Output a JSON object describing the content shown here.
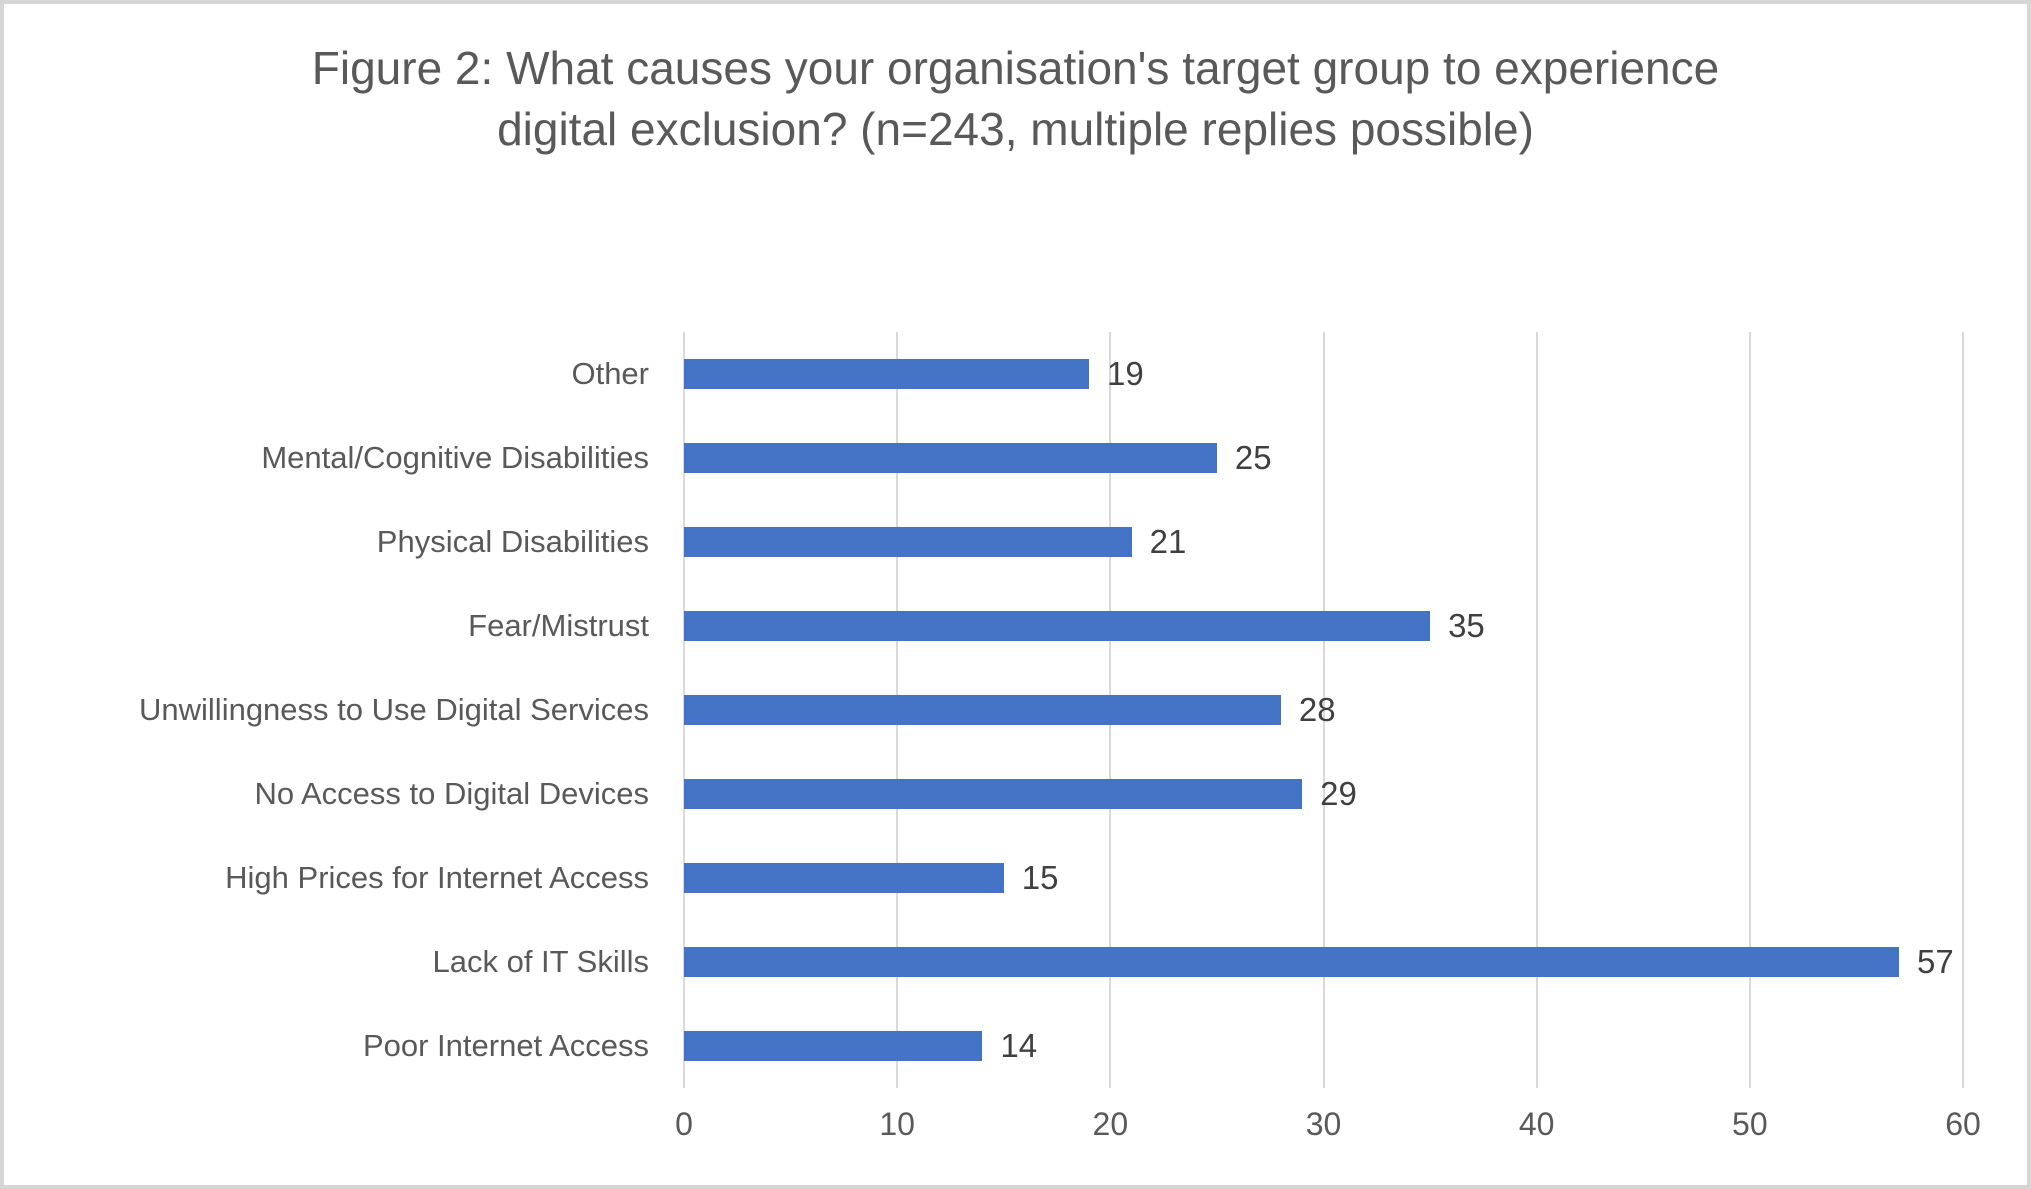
{
  "frame": {
    "background_color": "#ffffff",
    "border_color": "#d6d6d6"
  },
  "chart_data": {
    "type": "bar",
    "orientation": "horizontal",
    "title": "Figure 2: What causes your organisation's target group to experience digital exclusion? (n=243, multiple replies possible)",
    "categories": [
      "Other",
      "Mental/Cognitive Disabilities",
      "Physical Disabilities",
      "Fear/Mistrust",
      "Unwillingness to Use Digital Services",
      "No Access to Digital Devices",
      "High Prices for Internet Access",
      "Lack of IT Skills",
      "Poor Internet Access"
    ],
    "values": [
      19,
      25,
      21,
      35,
      28,
      29,
      15,
      57,
      14
    ],
    "xlabel": "",
    "ylabel": "",
    "xlim": [
      0,
      60
    ],
    "xticks": [
      0,
      10,
      20,
      30,
      40,
      50,
      60
    ],
    "grid": true,
    "legend": false,
    "data_labels": true,
    "bar_color": "#4472c4",
    "gridline_color": "#d9d9d9",
    "title_color": "#595959",
    "axis_label_color": "#595959",
    "value_label_color": "#404040"
  }
}
